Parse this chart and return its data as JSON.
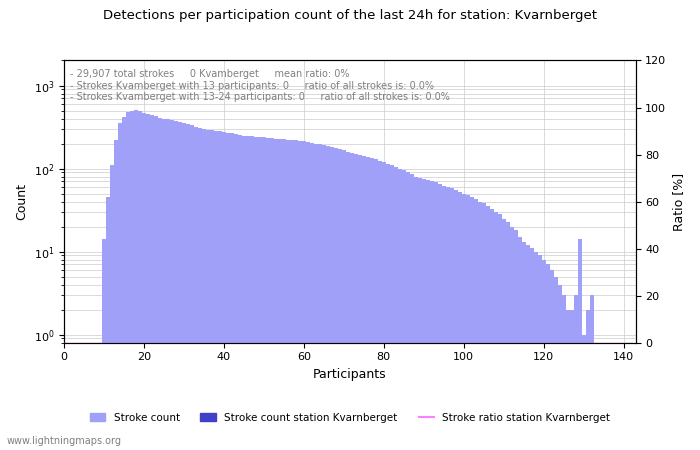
{
  "title": "Detections per participation count of the last 24h for station: Kvarnberget",
  "xlabel": "Participants",
  "ylabel_left": "Count",
  "ylabel_right": "Ratio [%]",
  "annotation_lines": [
    "- 29,907 total strokes     0 Kvamberget     mean ratio: 0%",
    "- Strokes Kvamberget with 13 participants: 0     ratio of all strokes is: 0.0%",
    "- Strokes Kvamberget with 13-24 participants: 0     ratio of all strokes is: 0.0%"
  ],
  "watermark": "www.lightningmaps.org",
  "bar_color_light": "#a0a0f8",
  "bar_color_dark": "#4040c8",
  "line_color": "#ff80ff",
  "xlim": [
    0,
    143
  ],
  "ylim_left_log": true,
  "ylim_right": [
    0,
    120
  ],
  "x_ticks": [
    0,
    20,
    40,
    60,
    80,
    100,
    120,
    140
  ],
  "y_ticks_right": [
    0,
    20,
    40,
    60,
    80,
    100,
    120
  ],
  "legend_labels": [
    "Stroke count",
    "Stroke count station Kvarnberget",
    "Stroke ratio station Kvarnberget"
  ],
  "counts": [
    0,
    0,
    0,
    0,
    0,
    0,
    0,
    0,
    0,
    0,
    14,
    45,
    110,
    220,
    350,
    420,
    480,
    500,
    510,
    490,
    470,
    450,
    440,
    430,
    410,
    400,
    390,
    380,
    370,
    360,
    350,
    340,
    330,
    320,
    310,
    300,
    295,
    290,
    285,
    280,
    275,
    270,
    265,
    260,
    255,
    250,
    248,
    245,
    243,
    240,
    238,
    235,
    233,
    230,
    228,
    225,
    223,
    220,
    218,
    215,
    213,
    210,
    205,
    200,
    195,
    190,
    185,
    180,
    175,
    170,
    165,
    160,
    155,
    150,
    145,
    140,
    138,
    135,
    130,
    125,
    120,
    115,
    110,
    105,
    100,
    95,
    90,
    85,
    80,
    78,
    75,
    72,
    70,
    68,
    65,
    62,
    60,
    58,
    55,
    52,
    50,
    48,
    45,
    43,
    40,
    38,
    35,
    33,
    30,
    28,
    25,
    23,
    20,
    18,
    15,
    13,
    12,
    11,
    10,
    9,
    8,
    7,
    6,
    5,
    4,
    3,
    2,
    2,
    3,
    14,
    1,
    2,
    3,
    0,
    0,
    0,
    0,
    0,
    0,
    0,
    0,
    0,
    0
  ],
  "station_counts": [
    0,
    0,
    0,
    0,
    0,
    0,
    0,
    0,
    0,
    0,
    0,
    0,
    0,
    0,
    0,
    0,
    0,
    0,
    0,
    0,
    0,
    0,
    0,
    0,
    0,
    0,
    0,
    0,
    0,
    0,
    0,
    0,
    0,
    0,
    0,
    0,
    0,
    0,
    0,
    0,
    0,
    0,
    0,
    0,
    0,
    0,
    0,
    0,
    0,
    0,
    0,
    0,
    0,
    0,
    0,
    0,
    0,
    0,
    0,
    0,
    0,
    0,
    0,
    0,
    0,
    0,
    0,
    0,
    0,
    0,
    0,
    0,
    0,
    0,
    0,
    0,
    0,
    0,
    0,
    0,
    0,
    0,
    0,
    0,
    0,
    0,
    0,
    0,
    0,
    0,
    0,
    0,
    0,
    0,
    0,
    0,
    0,
    0,
    0,
    0,
    0,
    0,
    0,
    0,
    0,
    0,
    0,
    0,
    0,
    0,
    0,
    0,
    0,
    0,
    0,
    0,
    0,
    0,
    0,
    0,
    0,
    0,
    0,
    0,
    0,
    0,
    0,
    0,
    0,
    0,
    0,
    0,
    0,
    0,
    0,
    0,
    0,
    0,
    0,
    0,
    0,
    0,
    0
  ],
  "ratio": [
    0,
    0,
    0,
    0,
    0,
    0,
    0,
    0,
    0,
    0,
    0,
    0,
    0,
    0,
    0,
    0,
    0,
    0,
    0,
    0,
    0,
    0,
    0,
    0,
    0,
    0,
    0,
    0,
    0,
    0,
    0,
    0,
    0,
    0,
    0,
    0,
    0,
    0,
    0,
    0,
    0,
    0,
    0,
    0,
    0,
    0,
    0,
    0,
    0,
    0,
    0,
    0,
    0,
    0,
    0,
    0,
    0,
    0,
    0,
    0,
    0,
    0,
    0,
    0,
    0,
    0,
    0,
    0,
    0,
    0,
    0,
    0,
    0,
    0,
    0,
    0,
    0,
    0,
    0,
    0,
    0,
    0,
    0,
    0,
    0,
    0,
    0,
    0,
    0,
    0,
    0,
    0,
    0,
    0,
    0,
    0,
    0,
    0,
    0,
    0,
    0,
    0,
    0,
    0,
    0,
    0,
    0,
    0,
    0,
    0,
    0,
    0,
    0,
    0,
    0,
    0,
    0,
    0,
    0,
    0,
    0,
    0,
    0,
    0,
    0,
    0,
    0,
    0,
    0,
    0,
    0,
    0,
    0,
    0,
    0,
    0,
    0,
    0,
    0,
    0,
    0,
    0,
    0
  ]
}
